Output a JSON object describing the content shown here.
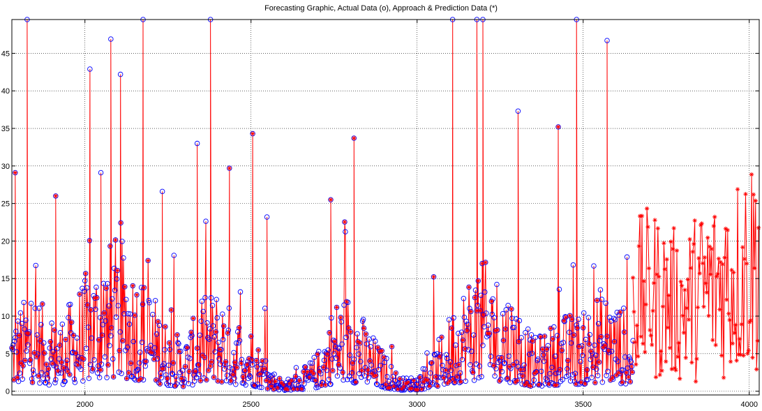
{
  "chart_data": {
    "type": "line",
    "title": "Forecasting Graphic, Actual Data (o), Approach & Prediction Data (*)",
    "xlabel": "",
    "ylabel": "",
    "xlim": [
      1780,
      4030
    ],
    "ylim": [
      -0.5,
      49.5
    ],
    "grid": true,
    "x_ticks": [
      2000,
      2500,
      3000,
      3500,
      4000
    ],
    "y_ticks": [
      0,
      5,
      10,
      15,
      20,
      25,
      30,
      35,
      40,
      45
    ],
    "actual_range": [
      1780,
      3650
    ],
    "forecast_range": [
      3650,
      4030
    ],
    "colors": {
      "actual_marker": "#0000ff",
      "prediction": "#ff0000",
      "grid": "#000000",
      "axis": "#000000"
    },
    "spikes": [
      {
        "x": 1790,
        "y": 29.1
      },
      {
        "x": 1826,
        "y": 49.5
      },
      {
        "x": 1912,
        "y": 26.0
      },
      {
        "x": 2015,
        "y": 42.9
      },
      {
        "x": 2048,
        "y": 29.1
      },
      {
        "x": 2078,
        "y": 46.9
      },
      {
        "x": 2107,
        "y": 42.2
      },
      {
        "x": 2175,
        "y": 49.5
      },
      {
        "x": 2233,
        "y": 26.6
      },
      {
        "x": 2338,
        "y": 33.0
      },
      {
        "x": 2378,
        "y": 49.5
      },
      {
        "x": 2435,
        "y": 29.7
      },
      {
        "x": 2505,
        "y": 34.3
      },
      {
        "x": 2548,
        "y": 23.2
      },
      {
        "x": 2740,
        "y": 25.5
      },
      {
        "x": 2810,
        "y": 33.7
      },
      {
        "x": 3107,
        "y": 49.5
      },
      {
        "x": 3180,
        "y": 49.5
      },
      {
        "x": 3198,
        "y": 49.5
      },
      {
        "x": 3304,
        "y": 37.3
      },
      {
        "x": 3425,
        "y": 35.2
      },
      {
        "x": 3480,
        "y": 49.5
      },
      {
        "x": 3572,
        "y": 46.7
      }
    ],
    "series": [
      {
        "name": "Actual Data (o)",
        "envelope": [
          {
            "x": 1780,
            "y": 6
          },
          {
            "x": 1850,
            "y": 8
          },
          {
            "x": 1900,
            "y": 5
          },
          {
            "x": 1960,
            "y": 7
          },
          {
            "x": 2000,
            "y": 9
          },
          {
            "x": 2050,
            "y": 11
          },
          {
            "x": 2100,
            "y": 12
          },
          {
            "x": 2150,
            "y": 10
          },
          {
            "x": 2200,
            "y": 8
          },
          {
            "x": 2250,
            "y": 5
          },
          {
            "x": 2300,
            "y": 4
          },
          {
            "x": 2350,
            "y": 7
          },
          {
            "x": 2400,
            "y": 8
          },
          {
            "x": 2450,
            "y": 6
          },
          {
            "x": 2500,
            "y": 5
          },
          {
            "x": 2550,
            "y": 2
          },
          {
            "x": 2600,
            "y": 0.8
          },
          {
            "x": 2650,
            "y": 1.5
          },
          {
            "x": 2700,
            "y": 3
          },
          {
            "x": 2750,
            "y": 7
          },
          {
            "x": 2800,
            "y": 8
          },
          {
            "x": 2850,
            "y": 5
          },
          {
            "x": 2900,
            "y": 3
          },
          {
            "x": 2950,
            "y": 1
          },
          {
            "x": 3000,
            "y": 1.2
          },
          {
            "x": 3050,
            "y": 3
          },
          {
            "x": 3100,
            "y": 6
          },
          {
            "x": 3150,
            "y": 9
          },
          {
            "x": 3200,
            "y": 10
          },
          {
            "x": 3250,
            "y": 9
          },
          {
            "x": 3300,
            "y": 7
          },
          {
            "x": 3350,
            "y": 4
          },
          {
            "x": 3400,
            "y": 5
          },
          {
            "x": 3450,
            "y": 6
          },
          {
            "x": 3500,
            "y": 6
          },
          {
            "x": 3550,
            "y": 8
          },
          {
            "x": 3600,
            "y": 7
          },
          {
            "x": 3650,
            "y": 6
          }
        ]
      },
      {
        "name": "Approach & Prediction Data (*)",
        "envelope": [
          {
            "x": 3650,
            "y": 12
          },
          {
            "x": 3700,
            "y": 13
          },
          {
            "x": 3750,
            "y": 12
          },
          {
            "x": 3800,
            "y": 11
          },
          {
            "x": 3850,
            "y": 13
          },
          {
            "x": 3900,
            "y": 14
          },
          {
            "x": 3950,
            "y": 15
          },
          {
            "x": 4000,
            "y": 17
          },
          {
            "x": 4030,
            "y": 18
          }
        ]
      }
    ]
  }
}
